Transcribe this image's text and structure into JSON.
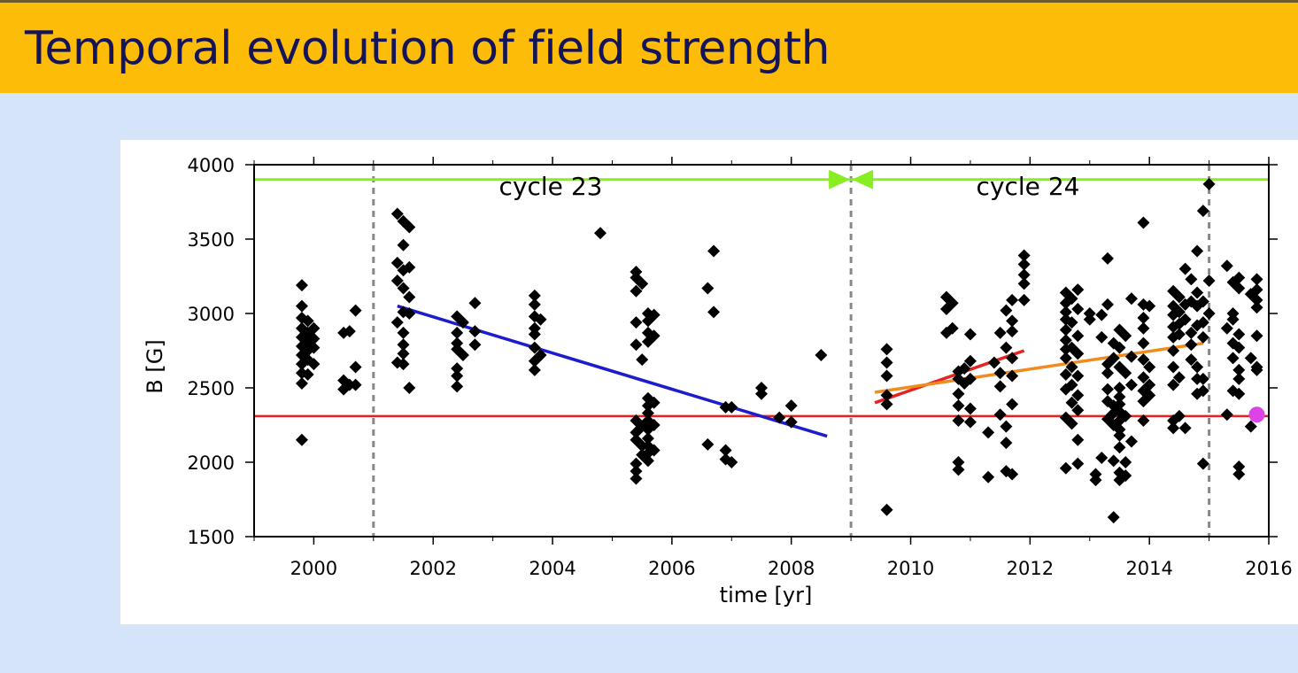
{
  "header": {
    "title": "Temporal evolution of field strength",
    "background_color": "#fdbc08",
    "title_color": "#14145a"
  },
  "chart_data": {
    "type": "scatter",
    "xlabel": "time [yr]",
    "ylabel": "B [G]",
    "xlim": [
      1999,
      2016
    ],
    "ylim": [
      1500,
      4000
    ],
    "x_ticks": [
      "2000",
      "2002",
      "2004",
      "2006",
      "2008",
      "2010",
      "2012",
      "2014",
      "2016"
    ],
    "y_ticks": [
      "1500",
      "2000",
      "2500",
      "3000",
      "3500",
      "4000"
    ],
    "grid": false,
    "annotations": [
      "cycle 23",
      "cycle 24"
    ],
    "cycle_boundaries": [
      2001,
      2009,
      2015
    ],
    "cycle_bar": {
      "value": 3900,
      "color": "#88ee22"
    },
    "reference_line": {
      "value": 2310,
      "color": "#e8211e"
    },
    "highlight_point": {
      "x": 2015.8,
      "y": 2320,
      "color": "#dd44e8"
    },
    "trend_lines": [
      {
        "color": "#1c1ccc",
        "x": [
          2001.4,
          2008.6
        ],
        "y": [
          3050,
          2175
        ]
      },
      {
        "color": "#e82222",
        "x": [
          2009.4,
          2011.9
        ],
        "y": [
          2400,
          2750
        ]
      },
      {
        "color": "#f08c1e",
        "x": [
          2009.4,
          2014.9
        ],
        "y": [
          2470,
          2800
        ]
      }
    ],
    "points": [
      [
        1999.8,
        3190
      ],
      [
        1999.8,
        3050
      ],
      [
        1999.8,
        2970
      ],
      [
        1999.8,
        2900
      ],
      [
        1999.8,
        2840
      ],
      [
        1999.8,
        2780
      ],
      [
        1999.8,
        2720
      ],
      [
        1999.8,
        2660
      ],
      [
        1999.8,
        2600
      ],
      [
        1999.8,
        2530
      ],
      [
        1999.8,
        2150
      ],
      [
        1999.9,
        2950
      ],
      [
        1999.9,
        2870
      ],
      [
        1999.9,
        2810
      ],
      [
        1999.9,
        2750
      ],
      [
        1999.9,
        2690
      ],
      [
        1999.9,
        2590
      ],
      [
        2000.0,
        2900
      ],
      [
        2000.0,
        2830
      ],
      [
        2000.0,
        2770
      ],
      [
        2000.0,
        2660
      ],
      [
        2000.5,
        2870
      ],
      [
        2000.5,
        2550
      ],
      [
        2000.5,
        2490
      ],
      [
        2000.6,
        2880
      ],
      [
        2000.6,
        2520
      ],
      [
        2000.7,
        3020
      ],
      [
        2000.7,
        2640
      ],
      [
        2000.7,
        2520
      ],
      [
        2001.4,
        3670
      ],
      [
        2001.4,
        3340
      ],
      [
        2001.4,
        3220
      ],
      [
        2001.4,
        2940
      ],
      [
        2001.4,
        2670
      ],
      [
        2001.5,
        3620
      ],
      [
        2001.5,
        3460
      ],
      [
        2001.5,
        3290
      ],
      [
        2001.5,
        3170
      ],
      [
        2001.5,
        3010
      ],
      [
        2001.5,
        2870
      ],
      [
        2001.5,
        2790
      ],
      [
        2001.5,
        2730
      ],
      [
        2001.5,
        2660
      ],
      [
        2001.6,
        3580
      ],
      [
        2001.6,
        3310
      ],
      [
        2001.6,
        3110
      ],
      [
        2001.6,
        3000
      ],
      [
        2001.6,
        2500
      ],
      [
        2002.4,
        2980
      ],
      [
        2002.4,
        2870
      ],
      [
        2002.4,
        2800
      ],
      [
        2002.4,
        2760
      ],
      [
        2002.4,
        2630
      ],
      [
        2002.4,
        2580
      ],
      [
        2002.4,
        2510
      ],
      [
        2002.5,
        2940
      ],
      [
        2002.5,
        2720
      ],
      [
        2002.7,
        3070
      ],
      [
        2002.7,
        2880
      ],
      [
        2002.7,
        2790
      ],
      [
        2003.7,
        3120
      ],
      [
        2003.7,
        3060
      ],
      [
        2003.7,
        2980
      ],
      [
        2003.7,
        2900
      ],
      [
        2003.7,
        2860
      ],
      [
        2003.7,
        2770
      ],
      [
        2003.7,
        2680
      ],
      [
        2003.7,
        2620
      ],
      [
        2003.8,
        2960
      ],
      [
        2003.8,
        2720
      ],
      [
        2004.8,
        3540
      ],
      [
        2005.4,
        3280
      ],
      [
        2005.4,
        3240
      ],
      [
        2005.4,
        3150
      ],
      [
        2005.4,
        2940
      ],
      [
        2005.4,
        2790
      ],
      [
        2005.4,
        2280
      ],
      [
        2005.4,
        2200
      ],
      [
        2005.4,
        2150
      ],
      [
        2005.4,
        1990
      ],
      [
        2005.4,
        1940
      ],
      [
        2005.4,
        1890
      ],
      [
        2005.5,
        3200
      ],
      [
        2005.5,
        2690
      ],
      [
        2005.5,
        2240
      ],
      [
        2005.5,
        2110
      ],
      [
        2005.5,
        2050
      ],
      [
        2005.6,
        3000
      ],
      [
        2005.6,
        2950
      ],
      [
        2005.6,
        2870
      ],
      [
        2005.6,
        2810
      ],
      [
        2005.6,
        2430
      ],
      [
        2005.6,
        2380
      ],
      [
        2005.6,
        2330
      ],
      [
        2005.6,
        2280
      ],
      [
        2005.6,
        2220
      ],
      [
        2005.6,
        2160
      ],
      [
        2005.6,
        2110
      ],
      [
        2005.6,
        2060
      ],
      [
        2005.6,
        2010
      ],
      [
        2005.7,
        2990
      ],
      [
        2005.7,
        2850
      ],
      [
        2005.7,
        2400
      ],
      [
        2005.7,
        2250
      ],
      [
        2005.7,
        2080
      ],
      [
        2006.6,
        3170
      ],
      [
        2006.6,
        2120
      ],
      [
        2006.7,
        3420
      ],
      [
        2006.7,
        3010
      ],
      [
        2006.9,
        2370
      ],
      [
        2006.9,
        2080
      ],
      [
        2006.9,
        2020
      ],
      [
        2007.0,
        2370
      ],
      [
        2007.0,
        2000
      ],
      [
        2007.5,
        2500
      ],
      [
        2007.5,
        2460
      ],
      [
        2007.8,
        2300
      ],
      [
        2008.0,
        2380
      ],
      [
        2008.0,
        2270
      ],
      [
        2008.5,
        2720
      ],
      [
        2009.6,
        2760
      ],
      [
        2009.6,
        2670
      ],
      [
        2009.6,
        2580
      ],
      [
        2009.6,
        2450
      ],
      [
        2009.6,
        2390
      ],
      [
        2009.6,
        1680
      ],
      [
        2010.6,
        3110
      ],
      [
        2010.6,
        3030
      ],
      [
        2010.6,
        2870
      ],
      [
        2010.7,
        3070
      ],
      [
        2010.7,
        2900
      ],
      [
        2010.8,
        2560
      ],
      [
        2010.8,
        2460
      ],
      [
        2010.8,
        2380
      ],
      [
        2010.8,
        2280
      ],
      [
        2010.8,
        2000
      ],
      [
        2010.8,
        1950
      ],
      [
        2010.8,
        2610
      ],
      [
        2010.9,
        2630
      ],
      [
        2010.9,
        2530
      ],
      [
        2011.0,
        2860
      ],
      [
        2011.0,
        2680
      ],
      [
        2011.0,
        2560
      ],
      [
        2011.0,
        2360
      ],
      [
        2011.0,
        2270
      ],
      [
        2011.3,
        2200
      ],
      [
        2011.3,
        1900
      ],
      [
        2011.4,
        2670
      ],
      [
        2011.5,
        2870
      ],
      [
        2011.5,
        2600
      ],
      [
        2011.5,
        2510
      ],
      [
        2011.5,
        2320
      ],
      [
        2011.6,
        3020
      ],
      [
        2011.6,
        2770
      ],
      [
        2011.6,
        2240
      ],
      [
        2011.6,
        2130
      ],
      [
        2011.6,
        1940
      ],
      [
        2011.7,
        3090
      ],
      [
        2011.7,
        2950
      ],
      [
        2011.7,
        2880
      ],
      [
        2011.7,
        2700
      ],
      [
        2011.7,
        2580
      ],
      [
        2011.7,
        2390
      ],
      [
        2011.7,
        1920
      ],
      [
        2011.9,
        3390
      ],
      [
        2011.9,
        3330
      ],
      [
        2011.9,
        3260
      ],
      [
        2011.9,
        3200
      ],
      [
        2011.9,
        3090
      ],
      [
        2012.6,
        3140
      ],
      [
        2012.6,
        3070
      ],
      [
        2012.6,
        3010
      ],
      [
        2012.6,
        2960
      ],
      [
        2012.6,
        2890
      ],
      [
        2012.6,
        2820
      ],
      [
        2012.6,
        2760
      ],
      [
        2012.6,
        2700
      ],
      [
        2012.6,
        2590
      ],
      [
        2012.6,
        2490
      ],
      [
        2012.6,
        2300
      ],
      [
        2012.6,
        1960
      ],
      [
        2012.7,
        3100
      ],
      [
        2012.7,
        2940
      ],
      [
        2012.7,
        2770
      ],
      [
        2012.7,
        2640
      ],
      [
        2012.7,
        2520
      ],
      [
        2012.7,
        2400
      ],
      [
        2012.7,
        2260
      ],
      [
        2012.8,
        3160
      ],
      [
        2012.8,
        3030
      ],
      [
        2012.8,
        2850
      ],
      [
        2012.8,
        2730
      ],
      [
        2012.8,
        2580
      ],
      [
        2012.8,
        2450
      ],
      [
        2012.8,
        2350
      ],
      [
        2012.8,
        2150
      ],
      [
        2012.8,
        1990
      ],
      [
        2013.0,
        3000
      ],
      [
        2013.0,
        2960
      ],
      [
        2013.1,
        1920
      ],
      [
        2013.1,
        1880
      ],
      [
        2013.2,
        2990
      ],
      [
        2013.2,
        2840
      ],
      [
        2013.2,
        2030
      ],
      [
        2013.3,
        3370
      ],
      [
        2013.3,
        3060
      ],
      [
        2013.3,
        2660
      ],
      [
        2013.3,
        2600
      ],
      [
        2013.3,
        2490
      ],
      [
        2013.3,
        2410
      ],
      [
        2013.3,
        2290
      ],
      [
        2013.4,
        2800
      ],
      [
        2013.4,
        2700
      ],
      [
        2013.4,
        2380
      ],
      [
        2013.4,
        2330
      ],
      [
        2013.4,
        2250
      ],
      [
        2013.4,
        2010
      ],
      [
        2013.4,
        1630
      ],
      [
        2013.5,
        2890
      ],
      [
        2013.5,
        2770
      ],
      [
        2013.5,
        2640
      ],
      [
        2013.5,
        2500
      ],
      [
        2013.5,
        2440
      ],
      [
        2013.5,
        2390
      ],
      [
        2013.5,
        2340
      ],
      [
        2013.5,
        2280
      ],
      [
        2013.5,
        2220
      ],
      [
        2013.5,
        2180
      ],
      [
        2013.5,
        2100
      ],
      [
        2013.5,
        1930
      ],
      [
        2013.5,
        1880
      ],
      [
        2013.6,
        2850
      ],
      [
        2013.6,
        2600
      ],
      [
        2013.6,
        2310
      ],
      [
        2013.6,
        2000
      ],
      [
        2013.6,
        1910
      ],
      [
        2013.7,
        3100
      ],
      [
        2013.7,
        2710
      ],
      [
        2013.7,
        2520
      ],
      [
        2013.7,
        2140
      ],
      [
        2013.9,
        3610
      ],
      [
        2013.9,
        3060
      ],
      [
        2013.9,
        2970
      ],
      [
        2013.9,
        2900
      ],
      [
        2013.9,
        2800
      ],
      [
        2013.9,
        2690
      ],
      [
        2013.9,
        2570
      ],
      [
        2013.9,
        2480
      ],
      [
        2013.9,
        2410
      ],
      [
        2013.9,
        2280
      ],
      [
        2014.0,
        3050
      ],
      [
        2014.0,
        2640
      ],
      [
        2014.0,
        2520
      ],
      [
        2014.0,
        2450
      ],
      [
        2014.4,
        3150
      ],
      [
        2014.4,
        3050
      ],
      [
        2014.4,
        2990
      ],
      [
        2014.4,
        2910
      ],
      [
        2014.4,
        2840
      ],
      [
        2014.4,
        2750
      ],
      [
        2014.4,
        2640
      ],
      [
        2014.4,
        2520
      ],
      [
        2014.4,
        2280
      ],
      [
        2014.4,
        2230
      ],
      [
        2014.5,
        3110
      ],
      [
        2014.5,
        3010
      ],
      [
        2014.5,
        2930
      ],
      [
        2014.5,
        2860
      ],
      [
        2014.5,
        2570
      ],
      [
        2014.5,
        2310
      ],
      [
        2014.6,
        3300
      ],
      [
        2014.6,
        3060
      ],
      [
        2014.6,
        2960
      ],
      [
        2014.6,
        2230
      ],
      [
        2014.7,
        3230
      ],
      [
        2014.7,
        3080
      ],
      [
        2014.7,
        2870
      ],
      [
        2014.7,
        2790
      ],
      [
        2014.7,
        2690
      ],
      [
        2014.8,
        3420
      ],
      [
        2014.8,
        3140
      ],
      [
        2014.8,
        3050
      ],
      [
        2014.8,
        2920
      ],
      [
        2014.8,
        2640
      ],
      [
        2014.8,
        2560
      ],
      [
        2014.8,
        2460
      ],
      [
        2014.9,
        3690
      ],
      [
        2014.9,
        3080
      ],
      [
        2014.9,
        2940
      ],
      [
        2014.9,
        2840
      ],
      [
        2014.9,
        2560
      ],
      [
        2014.9,
        2480
      ],
      [
        2014.9,
        1990
      ],
      [
        2015.0,
        3870
      ],
      [
        2015.0,
        3220
      ],
      [
        2015.0,
        3000
      ],
      [
        2015.3,
        3320
      ],
      [
        2015.3,
        2900
      ],
      [
        2015.3,
        2320
      ],
      [
        2015.4,
        3210
      ],
      [
        2015.4,
        3000
      ],
      [
        2015.4,
        2960
      ],
      [
        2015.4,
        2800
      ],
      [
        2015.4,
        2700
      ],
      [
        2015.4,
        2480
      ],
      [
        2015.5,
        3240
      ],
      [
        2015.5,
        3170
      ],
      [
        2015.5,
        2860
      ],
      [
        2015.5,
        2770
      ],
      [
        2015.5,
        2620
      ],
      [
        2015.5,
        2560
      ],
      [
        2015.5,
        2460
      ],
      [
        2015.5,
        1970
      ],
      [
        2015.5,
        1920
      ],
      [
        2015.7,
        3130
      ],
      [
        2015.7,
        2700
      ],
      [
        2015.7,
        2240
      ],
      [
        2015.8,
        3230
      ],
      [
        2015.8,
        3160
      ],
      [
        2015.8,
        3090
      ],
      [
        2015.8,
        3040
      ],
      [
        2015.8,
        2850
      ],
      [
        2015.8,
        2640
      ],
      [
        2015.8,
        2620
      ]
    ]
  }
}
